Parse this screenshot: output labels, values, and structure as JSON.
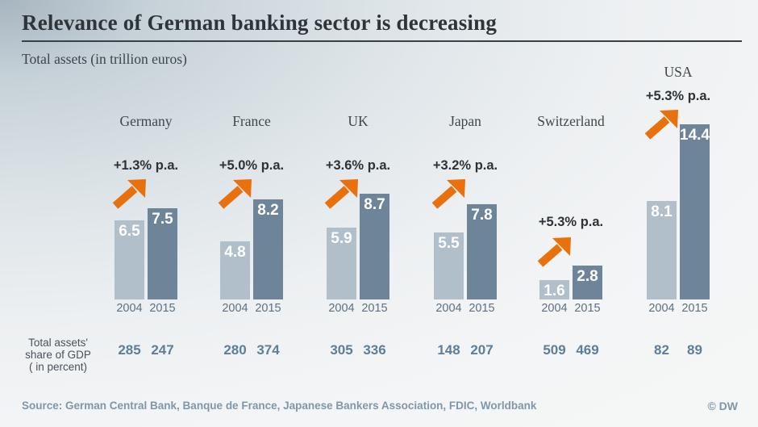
{
  "title": "Relevance of German banking sector is decreasing",
  "subtitle": "Total assets (in trillion euros)",
  "gdp_row": {
    "label_lines": [
      "Total assets'",
      "share of GDP",
      "( in percent)"
    ]
  },
  "footer": {
    "source": "Source: German Central Bank, Banque de France, Japanese Bankers Association, FDIC, Worldbank",
    "copyright": "© DW"
  },
  "colors": {
    "bar_2004": "#b1bfcb",
    "bar_2015": "#6e8599",
    "arrow_orange": "#e8700d",
    "gdp_value": "#5d7e99",
    "year_label": "#5e7080",
    "source_text": "#7e97ab"
  },
  "chart_data": {
    "type": "bar",
    "title": "Relevance of German banking sector is decreasing",
    "subtitle": "Total assets (in trillion euros)",
    "unit": "trillion euros",
    "years": [
      "2004",
      "2015"
    ],
    "groups": [
      {
        "country": "Germany",
        "values": [
          6.5,
          7.5
        ],
        "growth": "+1.3% p.a.",
        "gdp_share_percent": [
          285,
          247
        ]
      },
      {
        "country": "France",
        "values": [
          4.8,
          8.2
        ],
        "growth": "+5.0% p.a.",
        "gdp_share_percent": [
          280,
          374
        ]
      },
      {
        "country": "UK",
        "values": [
          5.9,
          8.7
        ],
        "growth": "+3.6% p.a.",
        "gdp_share_percent": [
          305,
          336
        ]
      },
      {
        "country": "Japan",
        "values": [
          5.5,
          7.8
        ],
        "growth": "+3.2% p.a.",
        "gdp_share_percent": [
          148,
          207
        ]
      },
      {
        "country": "Switzerland",
        "values": [
          1.6,
          2.8
        ],
        "growth": "+5.3% p.a.",
        "gdp_share_percent": [
          509,
          469
        ]
      },
      {
        "country": "USA",
        "values": [
          8.1,
          14.4
        ],
        "growth": "+5.3% p.a.",
        "gdp_share_percent": [
          82,
          89
        ]
      }
    ],
    "legend_position": "none",
    "grid": false
  }
}
